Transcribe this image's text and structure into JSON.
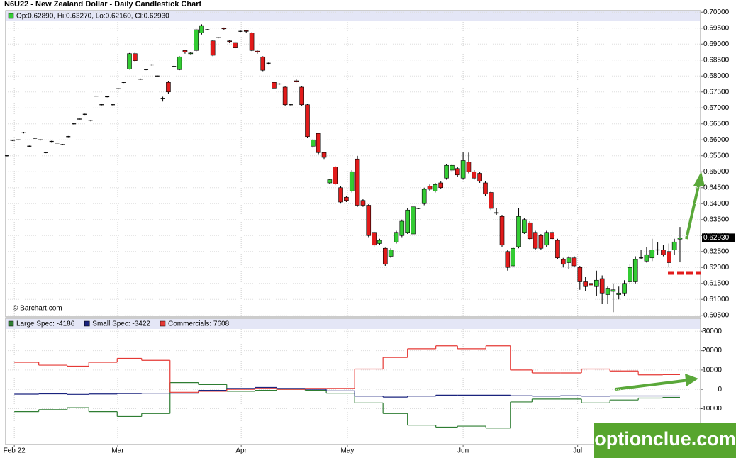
{
  "chart_data": [
    {
      "type": "candlestick",
      "title": "N6U22 - New Zealand Dollar - Daily Candlestick Chart",
      "legend_text": "Op:0.62890, Hi:0.63270, Lo:0.62160, Cl:0.62930",
      "credit": "© Barchart.com",
      "last_label": "0.62930",
      "up_color": "#33cc33",
      "down_color": "#e21b1b",
      "grid": true,
      "xlim": [
        -0.25,
        124.7
      ],
      "xticks": [
        {
          "value": 1.3,
          "label": "Feb 22"
        },
        {
          "value": 19.9,
          "label": "Mar"
        },
        {
          "value": 42.1,
          "label": "Apr"
        },
        {
          "value": 61.2,
          "label": "May"
        },
        {
          "value": 82,
          "label": "Jun"
        },
        {
          "value": 102.6,
          "label": "Jul"
        }
      ],
      "ylim": [
        0.6045,
        0.7005
      ],
      "yticks": [
        {
          "value": 0.7,
          "label": "0.70000"
        },
        {
          "value": 0.695,
          "label": "0.69500"
        },
        {
          "value": 0.69,
          "label": "0.69000"
        },
        {
          "value": 0.685,
          "label": "0.68500"
        },
        {
          "value": 0.68,
          "label": "0.68000"
        },
        {
          "value": 0.675,
          "label": "0.67500"
        },
        {
          "value": 0.67,
          "label": "0.67000"
        },
        {
          "value": 0.665,
          "label": "0.66500"
        },
        {
          "value": 0.66,
          "label": "0.66000"
        },
        {
          "value": 0.655,
          "label": "0.65500"
        },
        {
          "value": 0.65,
          "label": "0.65000"
        },
        {
          "value": 0.645,
          "label": "0.64500"
        },
        {
          "value": 0.64,
          "label": "0.64000"
        },
        {
          "value": 0.635,
          "label": "0.63500"
        },
        {
          "value": 0.63,
          "label": "0.63000"
        },
        {
          "value": 0.625,
          "label": "0.62500"
        },
        {
          "value": 0.62,
          "label": "0.62000"
        },
        {
          "value": 0.615,
          "label": "0.61500"
        },
        {
          "value": 0.61,
          "label": "0.61000"
        },
        {
          "value": 0.605,
          "label": "0.60500"
        }
      ],
      "ohlc": [
        [
          0.655,
          0.6552,
          0.6548,
          0.655
        ],
        [
          0.6598,
          0.66,
          0.6596,
          0.66
        ],
        [
          0.66,
          0.6602,
          0.6598,
          0.66
        ],
        [
          0.6622,
          0.6625,
          0.662,
          0.6622
        ],
        [
          0.658,
          0.6582,
          0.6578,
          0.658
        ],
        [
          0.6605,
          0.6607,
          0.6603,
          0.6605
        ],
        [
          0.66,
          0.6602,
          0.6598,
          0.66
        ],
        [
          0.656,
          0.6562,
          0.6558,
          0.656
        ],
        [
          0.6595,
          0.6597,
          0.6593,
          0.6595
        ],
        [
          0.659,
          0.6592,
          0.6588,
          0.659
        ],
        [
          0.6585,
          0.6587,
          0.6583,
          0.6585
        ],
        [
          0.661,
          0.6612,
          0.6608,
          0.661
        ],
        [
          0.665,
          0.6652,
          0.6648,
          0.665
        ],
        [
          0.6665,
          0.6667,
          0.6663,
          0.6665
        ],
        [
          0.668,
          0.6682,
          0.6678,
          0.668
        ],
        [
          0.666,
          0.6662,
          0.6658,
          0.666
        ],
        [
          0.6737,
          0.6739,
          0.6735,
          0.6737
        ],
        [
          0.671,
          0.6712,
          0.6708,
          0.671
        ],
        [
          0.6735,
          0.6737,
          0.6733,
          0.6735
        ],
        [
          0.671,
          0.6712,
          0.6708,
          0.671
        ],
        [
          0.676,
          0.6762,
          0.6758,
          0.676
        ],
        [
          0.678,
          0.6782,
          0.6778,
          0.678
        ],
        [
          0.6822,
          0.6872,
          0.682,
          0.687
        ],
        [
          0.687,
          0.6875,
          0.6845,
          0.6848
        ],
        [
          0.679,
          0.6792,
          0.6788,
          0.679
        ],
        [
          0.682,
          0.6822,
          0.6818,
          0.682
        ],
        [
          0.6835,
          0.6837,
          0.6833,
          0.6835
        ],
        [
          0.68,
          0.6802,
          0.6798,
          0.68
        ],
        [
          0.673,
          0.6735,
          0.672,
          0.673
        ],
        [
          0.678,
          0.6785,
          0.6745,
          0.675
        ],
        [
          0.683,
          0.6832,
          0.6828,
          0.683
        ],
        [
          0.682,
          0.6862,
          0.6818,
          0.686
        ],
        [
          0.688,
          0.6882,
          0.687,
          0.6875
        ],
        [
          0.687,
          0.6875,
          0.6868,
          0.6872
        ],
        [
          0.688,
          0.6948,
          0.6875,
          0.6945
        ],
        [
          0.6935,
          0.6962,
          0.693,
          0.6958
        ],
        [
          0.6945,
          0.6947,
          0.6943,
          0.6945
        ],
        [
          0.691,
          0.6912,
          0.6862,
          0.6865
        ],
        [
          0.692,
          0.6922,
          0.6918,
          0.692
        ],
        [
          0.695,
          0.6952,
          0.6945,
          0.6948
        ],
        [
          0.691,
          0.6912,
          0.6905,
          0.6908
        ],
        [
          0.6905,
          0.691,
          0.6885,
          0.689
        ],
        [
          0.694,
          0.6942,
          0.6938,
          0.694
        ],
        [
          0.6942,
          0.6945,
          0.6935,
          0.694
        ],
        [
          0.6935,
          0.6937,
          0.6878,
          0.688
        ],
        [
          0.6878,
          0.688,
          0.687,
          0.6875
        ],
        [
          0.686,
          0.6862,
          0.6815,
          0.6818
        ],
        [
          0.684,
          0.6842,
          0.6838,
          0.684
        ],
        [
          0.678,
          0.6782,
          0.6758,
          0.6762
        ],
        [
          0.6775,
          0.6777,
          0.6773,
          0.6775
        ],
        [
          0.6765,
          0.6768,
          0.6705,
          0.671
        ],
        [
          0.671,
          0.6712,
          0.6708,
          0.671
        ],
        [
          0.6785,
          0.679,
          0.678,
          0.6783
        ],
        [
          0.6765,
          0.6768,
          0.6705,
          0.671
        ],
        [
          0.671,
          0.6712,
          0.6605,
          0.661
        ],
        [
          0.658,
          0.6602,
          0.6575,
          0.66
        ],
        [
          0.662,
          0.6622,
          0.6555,
          0.656
        ],
        [
          0.656,
          0.6562,
          0.654,
          0.6545
        ],
        [
          0.6465,
          0.6478,
          0.6462,
          0.6475
        ],
        [
          0.6515,
          0.6518,
          0.6458,
          0.6462
        ],
        [
          0.645,
          0.6455,
          0.64,
          0.6405
        ],
        [
          0.642,
          0.6425,
          0.6405,
          0.641
        ],
        [
          0.644,
          0.6505,
          0.6435,
          0.65
        ],
        [
          0.654,
          0.655,
          0.639,
          0.6395
        ],
        [
          0.641,
          0.6415,
          0.639,
          0.6395
        ],
        [
          0.6395,
          0.6398,
          0.6295,
          0.63
        ],
        [
          0.631,
          0.6312,
          0.6265,
          0.627
        ],
        [
          0.6275,
          0.629,
          0.627,
          0.6285
        ],
        [
          0.626,
          0.6262,
          0.6205,
          0.621
        ],
        [
          0.6235,
          0.626,
          0.623,
          0.6255
        ],
        [
          0.628,
          0.6315,
          0.6275,
          0.631
        ],
        [
          0.63,
          0.635,
          0.6295,
          0.6345
        ],
        [
          0.631,
          0.6385,
          0.6305,
          0.638
        ],
        [
          0.6305,
          0.6395,
          0.63,
          0.639
        ],
        [
          0.6385,
          0.6387,
          0.6383,
          0.6385
        ],
        [
          0.64,
          0.645,
          0.6395,
          0.6445
        ],
        [
          0.6455,
          0.646,
          0.644,
          0.6445
        ],
        [
          0.644,
          0.6465,
          0.6435,
          0.646
        ],
        [
          0.6465,
          0.647,
          0.6445,
          0.645
        ],
        [
          0.648,
          0.6525,
          0.6475,
          0.652
        ],
        [
          0.6505,
          0.6525,
          0.65,
          0.652
        ],
        [
          0.651,
          0.6515,
          0.6485,
          0.649
        ],
        [
          0.648,
          0.6562,
          0.6475,
          0.6535
        ],
        [
          0.653,
          0.656,
          0.6495,
          0.65
        ],
        [
          0.65,
          0.6505,
          0.6475,
          0.648
        ],
        [
          0.6495,
          0.65,
          0.6465,
          0.647
        ],
        [
          0.6465,
          0.647,
          0.6425,
          0.643
        ],
        [
          0.6435,
          0.644,
          0.638,
          0.6385
        ],
        [
          0.637,
          0.6385,
          0.6365,
          0.6372
        ],
        [
          0.636,
          0.6365,
          0.6265,
          0.627
        ],
        [
          0.625,
          0.6255,
          0.619,
          0.62
        ],
        [
          0.6205,
          0.6265,
          0.62,
          0.626
        ],
        [
          0.6265,
          0.6385,
          0.626,
          0.636
        ],
        [
          0.631,
          0.6355,
          0.6305,
          0.635
        ],
        [
          0.634,
          0.6345,
          0.6285,
          0.629
        ],
        [
          0.631,
          0.6315,
          0.6255,
          0.626
        ],
        [
          0.63,
          0.6305,
          0.6255,
          0.626
        ],
        [
          0.627,
          0.6315,
          0.6265,
          0.631
        ],
        [
          0.631,
          0.6315,
          0.6285,
          0.629
        ],
        [
          0.6285,
          0.629,
          0.6225,
          0.623
        ],
        [
          0.6225,
          0.623,
          0.62,
          0.621
        ],
        [
          0.6215,
          0.6235,
          0.6195,
          0.623
        ],
        [
          0.623,
          0.6235,
          0.62,
          0.6205
        ],
        [
          0.62,
          0.6205,
          0.613,
          0.6155
        ],
        [
          0.6155,
          0.617,
          0.6125,
          0.614
        ],
        [
          0.615,
          0.617,
          0.613,
          0.6145
        ],
        [
          0.614,
          0.619,
          0.611,
          0.616
        ],
        [
          0.6165,
          0.6175,
          0.6085,
          0.612
        ],
        [
          0.6115,
          0.614,
          0.6085,
          0.6135
        ],
        [
          0.6125,
          0.615,
          0.606,
          0.613
        ],
        [
          0.6115,
          0.614,
          0.61,
          0.612
        ],
        [
          0.612,
          0.616,
          0.611,
          0.615
        ],
        [
          0.6155,
          0.621,
          0.615,
          0.62
        ],
        [
          0.6155,
          0.6235,
          0.615,
          0.6225
        ],
        [
          0.623,
          0.6255,
          0.6225,
          0.623
        ],
        [
          0.622,
          0.6265,
          0.6215,
          0.624
        ],
        [
          0.623,
          0.629,
          0.622,
          0.6255
        ],
        [
          0.6255,
          0.628,
          0.624,
          0.6255
        ],
        [
          0.6255,
          0.627,
          0.6235,
          0.624
        ],
        [
          0.625,
          0.6275,
          0.62,
          0.6215
        ],
        [
          0.6255,
          0.629,
          0.624,
          0.628
        ],
        [
          0.6289,
          0.6327,
          0.6216,
          0.6293
        ]
      ]
    },
    {
      "type": "step",
      "grid": true,
      "xlim": [
        -0.25,
        124.7
      ],
      "ylim": [
        -28500,
        36700
      ],
      "yticks": [
        30000,
        20000,
        10000,
        0,
        -10000
      ],
      "x": [
        1.3,
        5.7,
        10.8,
        14.7,
        19.8,
        24.2,
        29.3,
        34.4,
        39.5,
        44.6,
        48.5,
        53.6,
        57.4,
        62.5,
        67.6,
        72,
        77.1,
        81,
        86.1,
        90.5,
        94.4,
        99.5,
        103.3,
        108.4,
        113.5,
        117.9
      ],
      "series": [
        {
          "name": "Large Spec: -4186",
          "color": "#2e7d32",
          "values": [
            -11500,
            -10500,
            -9500,
            -11500,
            -14000,
            -12500,
            3500,
            2500,
            -1000,
            -500,
            0,
            -500,
            -2000,
            -7000,
            -12500,
            -18500,
            -19500,
            -19000,
            -20000,
            -6500,
            -5000,
            -5000,
            -7000,
            -5500,
            -4500,
            -4186
          ]
        },
        {
          "name": "Small Spec: -3422",
          "color": "#1a237e",
          "values": [
            -2500,
            -2300,
            -2600,
            -2400,
            -2200,
            -2000,
            -2000,
            -500,
            500,
            1000,
            500,
            0,
            -800,
            -3500,
            -4000,
            -3500,
            -3000,
            -3000,
            -3000,
            -3300,
            -3500,
            -3300,
            -3500,
            -3400,
            -3400,
            -3422
          ]
        },
        {
          "name": "Commercials: 7608",
          "color": "#e53935",
          "values": [
            14000,
            12500,
            12000,
            14000,
            16000,
            15000,
            -1500,
            -1000,
            0,
            500,
            0,
            500,
            500,
            10500,
            16500,
            21000,
            22500,
            21000,
            22500,
            10000,
            8500,
            8500,
            10500,
            9500,
            7500,
            7608
          ]
        }
      ]
    },
    {
      "watermark": "optionclue.com"
    }
  ]
}
